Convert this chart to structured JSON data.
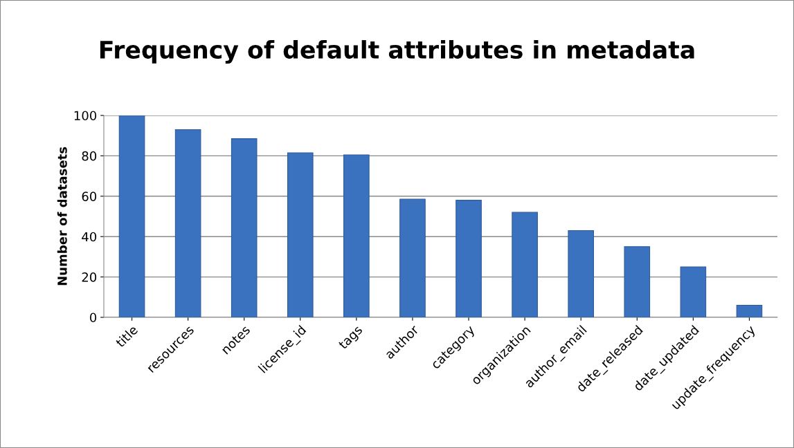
{
  "chart_data": {
    "type": "bar",
    "title": "Frequency of default attributes in metadata",
    "ylabel": "Number of datasets",
    "categories": [
      "title",
      "resources",
      "notes",
      "license_id",
      "tags",
      "author",
      "category",
      "organization",
      "author_email",
      "date_released",
      "date_updated",
      "update_frequency"
    ],
    "values": [
      100,
      93,
      88.5,
      81.5,
      80.5,
      58.5,
      58,
      52,
      43,
      35,
      25,
      6
    ],
    "color": "#3b72c0",
    "ylim": [
      0,
      100
    ],
    "yticks": [
      0,
      20,
      40,
      60,
      80,
      100
    ],
    "grid": "y",
    "legend": false
  }
}
